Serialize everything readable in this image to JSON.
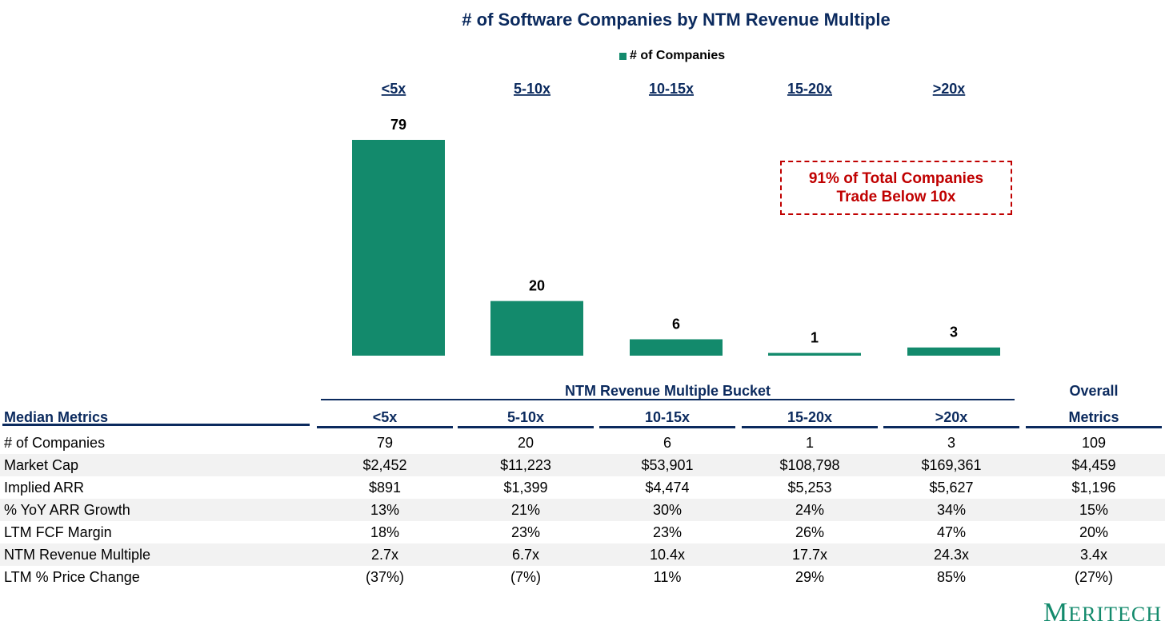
{
  "chart_data": {
    "type": "bar",
    "title": "# of Software Companies by NTM Revenue Multiple",
    "legend": [
      "# of Companies"
    ],
    "legend_position": "top-center",
    "categories": [
      "<5x",
      "5-10x",
      "10-15x",
      "15-20x",
      ">20x"
    ],
    "series": [
      {
        "name": "# of Companies",
        "values": [
          79,
          20,
          6,
          1,
          3
        ]
      }
    ],
    "ylim": [
      0,
      79
    ],
    "grid": false,
    "bar_color": "#138a6c",
    "annotation": [
      "91% of Total Companies",
      "Trade Below 10x"
    ],
    "annotation_color": "#c00000"
  },
  "table": {
    "group_header": "NTM Revenue Multiple Bucket",
    "overall_header_line1": "Overall",
    "overall_header_line2": "Metrics",
    "row_header": "Median Metrics",
    "columns": [
      "<5x",
      "5-10x",
      "10-15x",
      "15-20x",
      ">20x"
    ],
    "rows": [
      {
        "label": "# of Companies",
        "values": [
          "79",
          "20",
          "6",
          "1",
          "3"
        ],
        "overall": "109"
      },
      {
        "label": "Market Cap",
        "values": [
          "$2,452",
          "$11,223",
          "$53,901",
          "$108,798",
          "$169,361"
        ],
        "overall": "$4,459"
      },
      {
        "label": "Implied ARR",
        "values": [
          "$891",
          "$1,399",
          "$4,474",
          "$5,253",
          "$5,627"
        ],
        "overall": "$1,196"
      },
      {
        "label": "% YoY ARR Growth",
        "values": [
          "13%",
          "21%",
          "30%",
          "24%",
          "34%"
        ],
        "overall": "15%"
      },
      {
        "label": "LTM FCF Margin",
        "values": [
          "18%",
          "23%",
          "23%",
          "26%",
          "47%"
        ],
        "overall": "20%"
      },
      {
        "label": "NTM Revenue Multiple",
        "values": [
          "2.7x",
          "6.7x",
          "10.4x",
          "17.7x",
          "24.3x"
        ],
        "overall": "3.4x"
      },
      {
        "label": "LTM % Price Change",
        "values": [
          "(37%)",
          "(7%)",
          "11%",
          "29%",
          "85%"
        ],
        "overall": "(27%)"
      }
    ]
  },
  "colors": {
    "header_navy": "#0b2a5e",
    "row_shade": "#f2f2f2"
  },
  "logo": {
    "big_m": "M",
    "rest": "ERITECH"
  }
}
